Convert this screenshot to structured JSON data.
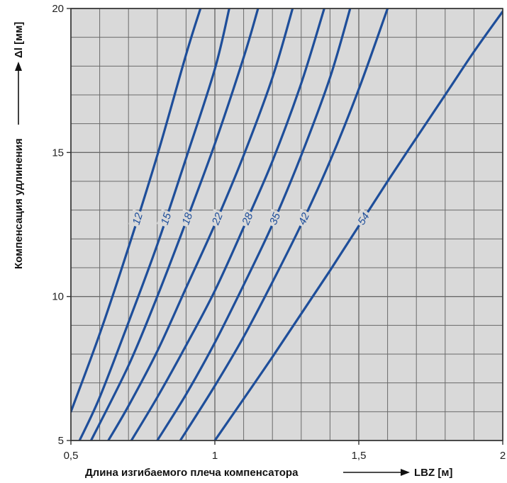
{
  "chart_data": {
    "type": "line",
    "title": "",
    "xlabel": "Длина изгибаемого плеча компенсатора",
    "xlabel_unit": "LBZ [м]",
    "ylabel": "Компенсация удлинения",
    "ylabel_unit": "Δl [мм]",
    "xlim": [
      0.5,
      2
    ],
    "ylim": [
      5,
      20
    ],
    "xticks": [
      0.5,
      1,
      1.5,
      2
    ],
    "xtick_labels": [
      "0,5",
      "1",
      "1,5",
      "2"
    ],
    "yticks": [
      5,
      10,
      15,
      20
    ],
    "ytick_labels": [
      "5",
      "10",
      "15",
      "20"
    ],
    "grid": true,
    "line_color": "#1e4e9a",
    "background_color": "#d9d9d9",
    "series": [
      {
        "name": "12",
        "x": [
          0.5,
          0.6,
          0.7,
          0.8,
          0.9,
          0.95
        ],
        "y": [
          6.0,
          8.7,
          11.7,
          14.9,
          18.4,
          20.0
        ]
      },
      {
        "name": "15",
        "x": [
          0.53,
          0.6,
          0.7,
          0.8,
          0.9,
          1.0,
          1.05
        ],
        "y": [
          5.0,
          6.5,
          9.1,
          11.8,
          14.8,
          17.9,
          20.0
        ]
      },
      {
        "name": "18",
        "x": [
          0.57,
          0.7,
          0.8,
          0.9,
          1.0,
          1.1,
          1.15
        ],
        "y": [
          5.0,
          7.6,
          10.0,
          12.6,
          15.3,
          18.3,
          20.0
        ]
      },
      {
        "name": "22",
        "x": [
          0.63,
          0.7,
          0.8,
          0.9,
          1.0,
          1.1,
          1.2,
          1.27
        ],
        "y": [
          5.0,
          6.2,
          8.1,
          10.3,
          12.5,
          14.9,
          17.6,
          20.0
        ]
      },
      {
        "name": "28",
        "x": [
          0.71,
          0.8,
          0.9,
          1.0,
          1.1,
          1.2,
          1.3,
          1.38
        ],
        "y": [
          5.0,
          6.5,
          8.3,
          10.2,
          12.4,
          14.7,
          17.4,
          20.0
        ]
      },
      {
        "name": "35",
        "x": [
          0.8,
          0.9,
          1.0,
          1.1,
          1.2,
          1.3,
          1.4,
          1.47
        ],
        "y": [
          5.0,
          6.6,
          8.4,
          10.4,
          12.5,
          14.9,
          17.6,
          20.0
        ]
      },
      {
        "name": "42",
        "x": [
          0.88,
          1.0,
          1.1,
          1.2,
          1.3,
          1.4,
          1.5,
          1.6
        ],
        "y": [
          5.0,
          6.9,
          8.6,
          10.5,
          12.5,
          14.7,
          17.2,
          20.0
        ]
      },
      {
        "name": "54",
        "x": [
          1.0,
          1.2,
          1.4,
          1.6,
          1.8,
          1.9,
          2.0
        ],
        "y": [
          5.0,
          7.9,
          10.9,
          14.0,
          17.0,
          18.5,
          19.9
        ]
      }
    ]
  }
}
